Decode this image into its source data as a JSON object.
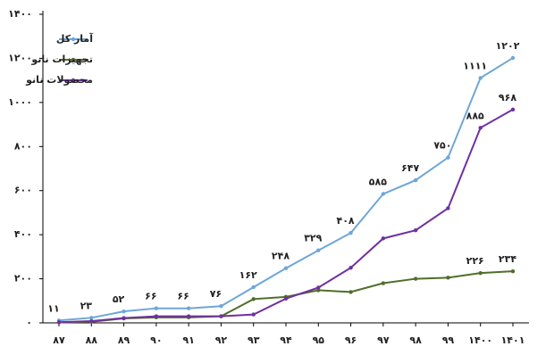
{
  "chart_data": {
    "type": "line",
    "categories": [
      "۸۷",
      "۸۸",
      "۸۹",
      "۹۰",
      "۹۱",
      "۹۲",
      "۹۳",
      "۹۴",
      "۹۵",
      "۹۶",
      "۹۷",
      "۹۸",
      "۹۹",
      "۱۴۰۰",
      "۱۴۰۱"
    ],
    "series": [
      {
        "name": "آمار کل",
        "color": "#6ea6d8",
        "values": [
          11,
          23,
          52,
          66,
          66,
          76,
          162,
          248,
          329,
          408,
          585,
          647,
          750,
          1111,
          1202
        ],
        "value_labels": [
          "۱۱",
          "۲۳",
          "۵۲",
          "۶۶",
          "۶۶",
          "۷۶",
          "۱۶۲",
          "۲۴۸",
          "۳۲۹",
          "۴۰۸",
          "۵۸۵",
          "۶۴۷",
          "۷۵۰",
          "۱۱۱۱",
          "۱۲۰۲"
        ]
      },
      {
        "name": "تجهیزات نانو",
        "color": "#4f6e28",
        "values": [
          2,
          5,
          20,
          25,
          25,
          30,
          108,
          118,
          148,
          140,
          180,
          200,
          205,
          226,
          234
        ],
        "value_labels": [
          null,
          null,
          null,
          null,
          null,
          null,
          null,
          null,
          null,
          null,
          null,
          null,
          null,
          "۲۲۶",
          "۲۳۴"
        ]
      },
      {
        "name": "محصولات نانو",
        "color": "#7030a0",
        "values": [
          3,
          8,
          22,
          30,
          30,
          30,
          38,
          110,
          160,
          250,
          383,
          420,
          520,
          885,
          968
        ],
        "value_labels": [
          null,
          null,
          null,
          null,
          null,
          null,
          null,
          null,
          null,
          null,
          null,
          null,
          null,
          "۸۸۵",
          "۹۶۸"
        ]
      }
    ],
    "ylim": [
      0,
      1400
    ],
    "yticks": [
      {
        "value": 0,
        "label": "۰"
      },
      {
        "value": 200,
        "label": "۲۰۰"
      },
      {
        "value": 400,
        "label": "۴۰۰"
      },
      {
        "value": 600,
        "label": "۶۰۰"
      },
      {
        "value": 800,
        "label": "۸۰۰"
      },
      {
        "value": 1000,
        "label": "۱۰۰۰"
      },
      {
        "value": 1200,
        "label": "۱۲۰۰"
      },
      {
        "value": 1400,
        "label": "۱۴۰۰"
      }
    ],
    "legend": "top-left",
    "grid": false
  }
}
